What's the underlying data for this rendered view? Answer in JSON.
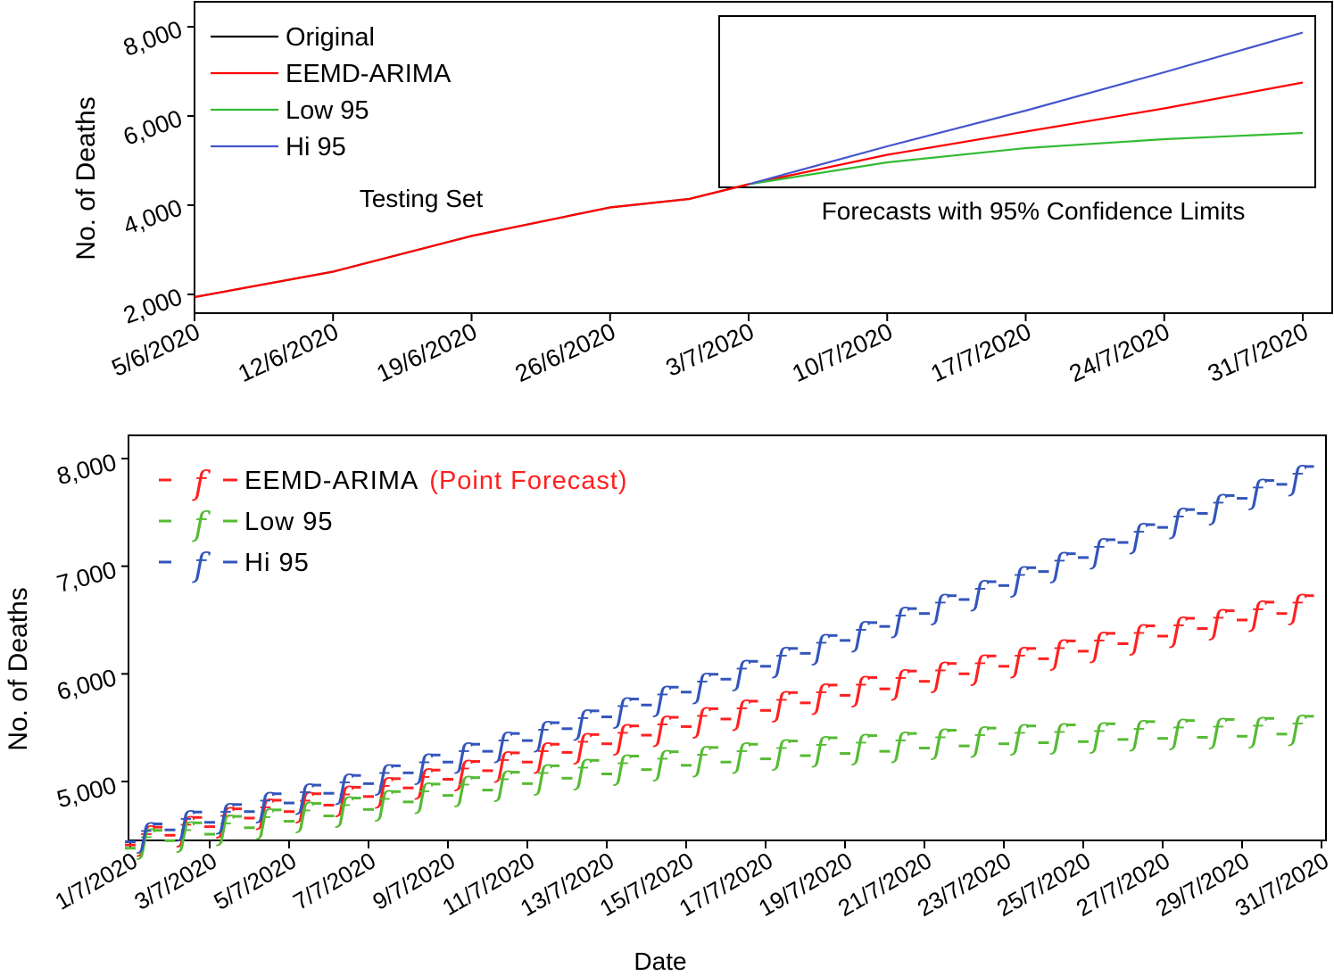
{
  "chart_data": [
    {
      "type": "line",
      "title": "",
      "ylabel": "No. of Deaths",
      "xlabel": "",
      "x_start": "5/6/2020",
      "x_end": "31/7/2020",
      "x_tick_labels": [
        "5/6/2020",
        "12/6/2020",
        "19/6/2020",
        "26/6/2020",
        "3/7/2020",
        "10/7/2020",
        "17/7/2020",
        "24/7/2020",
        "31/7/2020"
      ],
      "y_tick_labels": [
        "2,000",
        "4,000",
        "6,000",
        "8,000"
      ],
      "y_ticks": [
        2000,
        4000,
        6000,
        8000
      ],
      "ylim": [
        1500,
        8500
      ],
      "annotations": {
        "testing": "Testing Set",
        "forecast": "Forecasts with 95% Confidence Limits"
      },
      "legend_position": "top-left",
      "series": [
        {
          "name": "Original",
          "color": "#000000",
          "x_day": [
            0,
            7,
            14,
            21,
            25,
            28
          ],
          "values": [
            1940,
            2510,
            3310,
            3950,
            4140,
            4470
          ]
        },
        {
          "name": "EEMD-ARIMA",
          "color": "#ff0000",
          "x_day": [
            0,
            7,
            14,
            21,
            25,
            28,
            35,
            42,
            49,
            56
          ],
          "values": [
            1940,
            2510,
            3310,
            3950,
            4140,
            4470,
            5130,
            5650,
            6170,
            6750
          ]
        },
        {
          "name": "Low 95",
          "color": "#33bb33",
          "x_day": [
            28,
            35,
            42,
            49,
            56
          ],
          "values": [
            4470,
            4960,
            5280,
            5480,
            5620
          ]
        },
        {
          "name": "Hi 95",
          "color": "#4455cc",
          "x_day": [
            28,
            35,
            42,
            49,
            56
          ],
          "values": [
            4470,
            5320,
            6120,
            6980,
            7870
          ]
        }
      ]
    },
    {
      "type": "scatter",
      "title": "",
      "xlabel": "Date",
      "ylabel": "No. of Deaths",
      "x_tick_labels": [
        "1/7/2020",
        "3/7/2020",
        "5/7/2020",
        "7/7/2020",
        "9/7/2020",
        "11/7/2020",
        "13/7/2020",
        "15/7/2020",
        "17/7/2020",
        "19/7/2020",
        "21/7/2020",
        "23/7/2020",
        "25/7/2020",
        "27/7/2020",
        "29/7/2020",
        "31/7/2020"
      ],
      "y_tick_labels": [
        "5,000",
        "6,000",
        "7,000",
        "8,000"
      ],
      "y_ticks": [
        5000,
        6000,
        7000,
        8000
      ],
      "ylim": [
        4450,
        8300
      ],
      "marker_symbol": "f",
      "legend_position": "top-left",
      "legend_note": "(Point Forecast)",
      "x_day": [
        0,
        1,
        2,
        3,
        4,
        5,
        6,
        7,
        8,
        9,
        10,
        11,
        12,
        13,
        14,
        15,
        16,
        17,
        18,
        19,
        20,
        21,
        22,
        23,
        24,
        25,
        26,
        27,
        28,
        29
      ],
      "series": [
        {
          "name": "EEMD-ARIMA",
          "color": "#ff2020",
          "values": [
            4510,
            4600,
            4680,
            4760,
            4820,
            4880,
            4960,
            5040,
            5120,
            5200,
            5280,
            5370,
            5450,
            5530,
            5610,
            5680,
            5760,
            5830,
            5900,
            5960,
            6030,
            6100,
            6170,
            6240,
            6310,
            6380,
            6450,
            6520,
            6600,
            6660
          ]
        },
        {
          "name": "Low 95",
          "color": "#55bb33",
          "values": [
            4480,
            4550,
            4610,
            4670,
            4730,
            4780,
            4840,
            4910,
            4970,
            5020,
            5080,
            5130,
            5170,
            5210,
            5250,
            5280,
            5310,
            5340,
            5360,
            5380,
            5410,
            5430,
            5450,
            5460,
            5470,
            5490,
            5500,
            5510,
            5520,
            5540
          ]
        },
        {
          "name": "Hi 95",
          "color": "#3355bb",
          "values": [
            4540,
            4650,
            4720,
            4820,
            4900,
            4990,
            5080,
            5180,
            5280,
            5380,
            5480,
            5590,
            5700,
            5810,
            5930,
            6050,
            6170,
            6290,
            6410,
            6540,
            6660,
            6790,
            6920,
            7050,
            7180,
            7320,
            7460,
            7590,
            7730,
            7860
          ]
        }
      ]
    }
  ]
}
